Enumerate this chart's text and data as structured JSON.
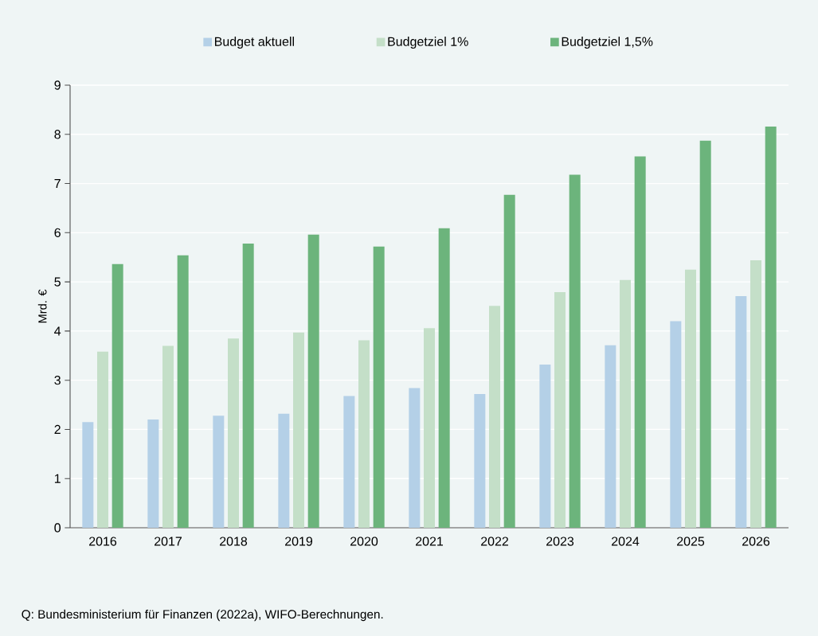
{
  "chart_data": {
    "type": "bar",
    "categories": [
      "2016",
      "2017",
      "2018",
      "2019",
      "2020",
      "2021",
      "2022",
      "2023",
      "2024",
      "2025",
      "2026"
    ],
    "series": [
      {
        "name": "Budget aktuell",
        "color": "#b4d0e7",
        "values": [
          2.15,
          2.2,
          2.28,
          2.32,
          2.68,
          2.84,
          2.72,
          3.32,
          3.71,
          4.2,
          4.71
        ]
      },
      {
        "name": "Budgetziel 1%",
        "color": "#c4dfc8",
        "values": [
          3.58,
          3.7,
          3.85,
          3.97,
          3.81,
          4.06,
          4.51,
          4.79,
          5.04,
          5.25,
          5.44
        ]
      },
      {
        "name": "Budgetziel 1,5%",
        "color": "#6cb47c",
        "values": [
          5.36,
          5.54,
          5.78,
          5.96,
          5.72,
          6.09,
          6.77,
          7.18,
          7.55,
          7.87,
          8.16
        ]
      }
    ],
    "ylabel": "Mrd. €",
    "ylim": [
      0,
      9
    ],
    "yticks": [
      0,
      1,
      2,
      3,
      4,
      5,
      6,
      7,
      8,
      9
    ],
    "grid": "y",
    "legend": "top",
    "annotations": [
      "Q: Bundesministerium für Finanzen (2022a), WIFO-Berechnungen."
    ]
  }
}
